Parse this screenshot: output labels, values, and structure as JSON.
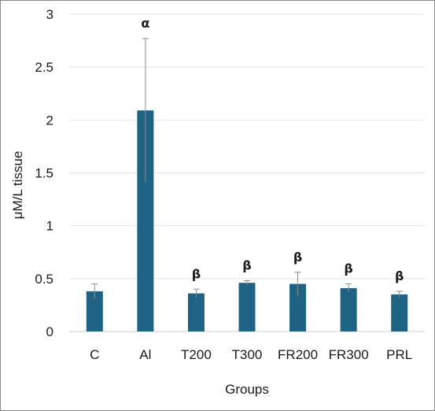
{
  "chart_data": {
    "type": "bar",
    "categories": [
      "C",
      "Al",
      "T200",
      "T300",
      "FR200",
      "FR300",
      "PRL"
    ],
    "values": [
      0.38,
      2.09,
      0.36,
      0.46,
      0.45,
      0.41,
      0.35
    ],
    "error": [
      0.07,
      0.68,
      0.04,
      0.02,
      0.11,
      0.04,
      0.03
    ],
    "annotations": [
      "",
      "α",
      "β",
      "β",
      "β",
      "β",
      "β"
    ],
    "xlabel": "Groups",
    "ylabel": "μM/L tissue",
    "ylim": [
      0,
      3
    ],
    "yticks": [
      "0",
      "0.5",
      "1",
      "1.5",
      "2",
      "2.5",
      "3"
    ],
    "grid": true,
    "legend": "none",
    "bar_color": "#1f6384",
    "error_color": "#8c8c8c"
  }
}
